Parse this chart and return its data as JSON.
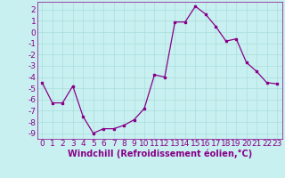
{
  "x": [
    0,
    1,
    2,
    3,
    4,
    5,
    6,
    7,
    8,
    9,
    10,
    11,
    12,
    13,
    14,
    15,
    16,
    17,
    18,
    19,
    20,
    21,
    22,
    23
  ],
  "y": [
    -4.5,
    -6.3,
    -6.3,
    -4.8,
    -7.5,
    -9.0,
    -8.6,
    -8.6,
    -8.3,
    -7.8,
    -6.8,
    -3.8,
    -4.0,
    0.9,
    0.9,
    2.3,
    1.6,
    0.5,
    -0.8,
    -0.6,
    -2.7,
    -3.5,
    -4.5,
    -4.6
  ],
  "line_color": "#880088",
  "marker": "s",
  "marker_size": 2,
  "bg_color": "#c8f0f0",
  "grid_color": "#aadddd",
  "xlabel": "Windchill (Refroidissement éolien,°C)",
  "xlabel_color": "#880088",
  "tick_color": "#880088",
  "ylim": [
    -9.5,
    2.7
  ],
  "xlim": [
    -0.5,
    23.5
  ],
  "yticks": [
    2,
    1,
    0,
    -1,
    -2,
    -3,
    -4,
    -5,
    -6,
    -7,
    -8,
    -9
  ],
  "xticks": [
    0,
    1,
    2,
    3,
    4,
    5,
    6,
    7,
    8,
    9,
    10,
    11,
    12,
    13,
    14,
    15,
    16,
    17,
    18,
    19,
    20,
    21,
    22,
    23
  ],
  "spine_color": "#880088",
  "font_size_ticks": 6.5,
  "font_size_xlabel": 7
}
